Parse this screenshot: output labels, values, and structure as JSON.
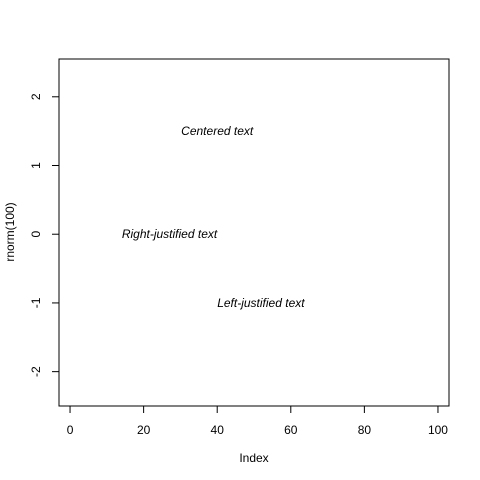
{
  "chart_data": {
    "type": "scatter",
    "title": "",
    "xlabel": "Index",
    "ylabel": "rnorm(100)",
    "xlim": [
      -3,
      103
    ],
    "ylim": [
      -2.5,
      2.55
    ],
    "x_ticks": [
      0,
      20,
      40,
      60,
      80,
      100
    ],
    "y_ticks": [
      -2,
      -1,
      0,
      1,
      2
    ],
    "grid": false,
    "legend": "none",
    "points_visible": false,
    "annotations": [
      {
        "text": "Centered text",
        "x": 40,
        "y": 1.5,
        "justify": "center",
        "style": "italic"
      },
      {
        "text": "Right-justified text",
        "x": 40,
        "y": 0,
        "justify": "right",
        "style": "italic"
      },
      {
        "text": "Left-justified text",
        "x": 40,
        "y": -1,
        "justify": "left",
        "style": "italic"
      }
    ]
  }
}
